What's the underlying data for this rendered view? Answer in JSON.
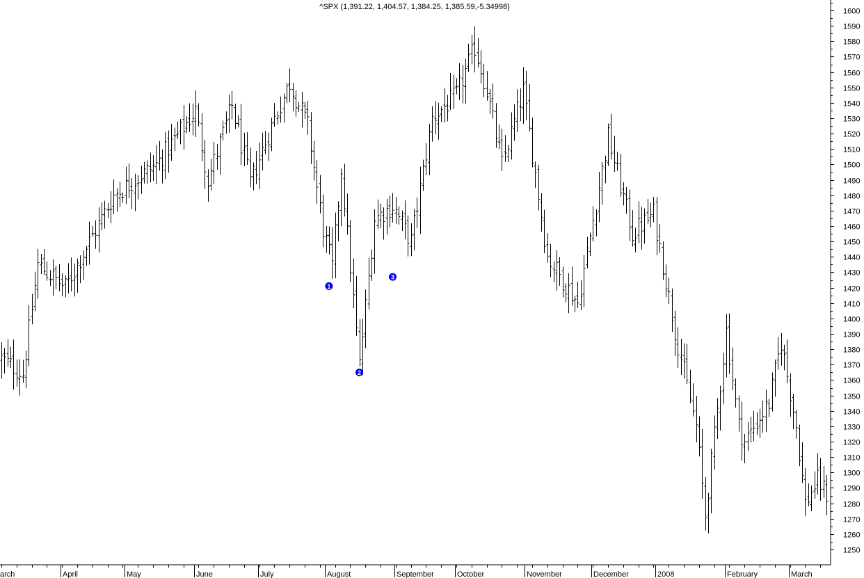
{
  "chart_data": {
    "type": "ohlc",
    "title": "^SPX (1,391.22, 1,404.57, 1,384.25, 1,385.59,-5.34998)",
    "ylim": [
      1243,
      1610
    ],
    "y_axis_position": "right",
    "y_ticks": [
      1250,
      1260,
      1270,
      1280,
      1290,
      1300,
      1310,
      1320,
      1330,
      1340,
      1350,
      1360,
      1370,
      1380,
      1390,
      1400,
      1410,
      1420,
      1430,
      1440,
      1450,
      1460,
      1470,
      1480,
      1490,
      1500,
      1510,
      1520,
      1530,
      1540,
      1550,
      1560,
      1570,
      1580,
      1590,
      1600
    ],
    "x_range": [
      "2007-03-05",
      "2008-03-19"
    ],
    "months": [
      {
        "label": "arch",
        "date": "2007-03-01"
      },
      {
        "label": "April",
        "date": "2007-04-01"
      },
      {
        "label": "May",
        "date": "2007-05-01"
      },
      {
        "label": "June",
        "date": "2007-06-01"
      },
      {
        "label": "July",
        "date": "2007-07-01"
      },
      {
        "label": "August",
        "date": "2007-08-01"
      },
      {
        "label": "September",
        "date": "2007-09-01"
      },
      {
        "label": "October",
        "date": "2007-10-01"
      },
      {
        "label": "November",
        "date": "2007-11-01"
      },
      {
        "label": "December",
        "date": "2007-12-01"
      },
      {
        "label": "2008",
        "date": "2008-01-01"
      },
      {
        "label": "February",
        "date": "2008-02-01"
      },
      {
        "label": "March",
        "date": "2008-03-01"
      }
    ],
    "annotations": [
      {
        "label": "1",
        "date": "2007-08-02",
        "value": 1421
      },
      {
        "label": "2",
        "date": "2007-08-16",
        "value": 1365
      },
      {
        "label": "3",
        "date": "2007-08-31",
        "value": 1427
      }
    ],
    "key_points": [
      {
        "date": "2007-03-05",
        "value": 1374
      },
      {
        "date": "2007-03-14",
        "value": 1364
      },
      {
        "date": "2007-03-21",
        "value": 1435
      },
      {
        "date": "2007-04-03",
        "value": 1420
      },
      {
        "date": "2007-04-25",
        "value": 1480
      },
      {
        "date": "2007-05-15",
        "value": 1500
      },
      {
        "date": "2007-06-01",
        "value": 1535
      },
      {
        "date": "2007-06-07",
        "value": 1490
      },
      {
        "date": "2007-06-19",
        "value": 1538
      },
      {
        "date": "2007-06-27",
        "value": 1488
      },
      {
        "date": "2007-07-09",
        "value": 1530
      },
      {
        "date": "2007-07-16",
        "value": 1553
      },
      {
        "date": "2007-07-24",
        "value": 1525
      },
      {
        "date": "2007-07-31",
        "value": 1458
      },
      {
        "date": "2007-08-03",
        "value": 1433
      },
      {
        "date": "2007-08-08",
        "value": 1497
      },
      {
        "date": "2007-08-16",
        "value": 1370
      },
      {
        "date": "2007-08-23",
        "value": 1465
      },
      {
        "date": "2007-08-31",
        "value": 1473
      },
      {
        "date": "2007-09-10",
        "value": 1450
      },
      {
        "date": "2007-09-19",
        "value": 1530
      },
      {
        "date": "2007-10-01",
        "value": 1545
      },
      {
        "date": "2007-10-09",
        "value": 1576
      },
      {
        "date": "2007-10-15",
        "value": 1548
      },
      {
        "date": "2007-10-22",
        "value": 1500
      },
      {
        "date": "2007-10-31",
        "value": 1548
      },
      {
        "date": "2007-11-12",
        "value": 1440
      },
      {
        "date": "2007-11-26",
        "value": 1410
      },
      {
        "date": "2007-12-10",
        "value": 1518
      },
      {
        "date": "2007-12-20",
        "value": 1455
      },
      {
        "date": "2007-12-31",
        "value": 1468
      },
      {
        "date": "2008-01-09",
        "value": 1392
      },
      {
        "date": "2008-01-18",
        "value": 1330
      },
      {
        "date": "2008-01-23",
        "value": 1272
      },
      {
        "date": "2008-02-01",
        "value": 1392
      },
      {
        "date": "2008-02-07",
        "value": 1330
      },
      {
        "date": "2008-02-11",
        "value": 1320
      },
      {
        "date": "2008-02-21",
        "value": 1345
      },
      {
        "date": "2008-02-27",
        "value": 1385
      },
      {
        "date": "2008-03-05",
        "value": 1330
      },
      {
        "date": "2008-03-10",
        "value": 1280
      },
      {
        "date": "2008-03-14",
        "value": 1295
      },
      {
        "date": "2008-03-19",
        "value": 1286
      }
    ],
    "grid": false,
    "legend": "none"
  }
}
